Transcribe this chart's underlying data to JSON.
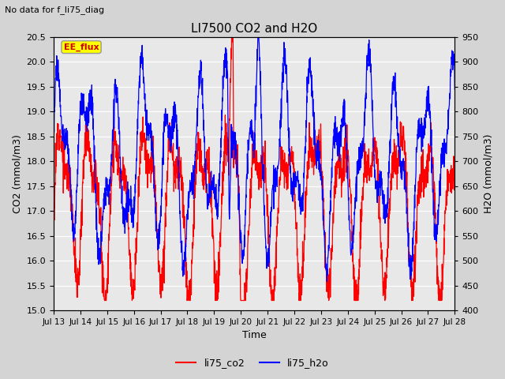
{
  "title": "LI7500 CO2 and H2O",
  "subtitle": "No data for f_li75_diag",
  "xlabel": "Time",
  "ylabel_left": "CO2 (mmol/m3)",
  "ylabel_right": "H2O (mmol/m3)",
  "ylim_left": [
    15.0,
    20.5
  ],
  "ylim_right": [
    400,
    950
  ],
  "yticks_left": [
    15.0,
    15.5,
    16.0,
    16.5,
    17.0,
    17.5,
    18.0,
    18.5,
    19.0,
    19.5,
    20.0,
    20.5
  ],
  "yticks_right": [
    400,
    450,
    500,
    550,
    600,
    650,
    700,
    750,
    800,
    850,
    900,
    950
  ],
  "xtick_labels": [
    "Jul 13",
    "Jul 14",
    "Jul 15",
    "Jul 16",
    "Jul 17",
    "Jul 18",
    "Jul 19",
    "Jul 20",
    "Jul 21",
    "Jul 22",
    "Jul 23",
    "Jul 24",
    "Jul 25",
    "Jul 26",
    "Jul 27",
    "Jul 28"
  ],
  "annotation_box_text": "EE_flux",
  "annotation_box_color": "#ffff00",
  "annotation_box_edge": "#999999",
  "legend_co2_label": "li75_co2",
  "legend_h2o_label": "li75_h2o",
  "co2_color": "red",
  "h2o_color": "blue",
  "fig_bg_color": "#d4d4d4",
  "plot_bg_color": "#e8e8e8",
  "grid_color": "white"
}
